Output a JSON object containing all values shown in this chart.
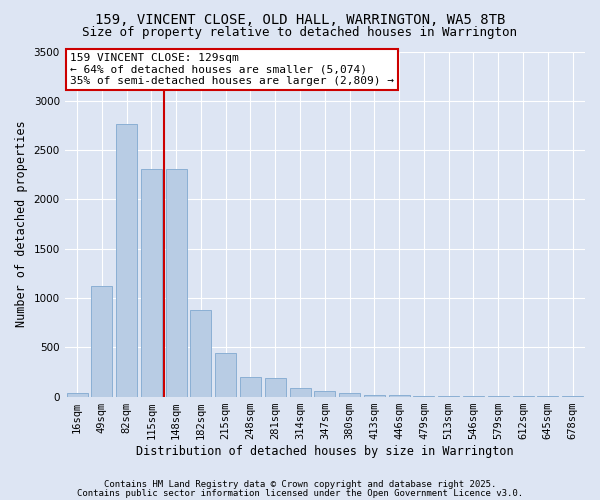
{
  "title": "159, VINCENT CLOSE, OLD HALL, WARRINGTON, WA5 8TB",
  "subtitle": "Size of property relative to detached houses in Warrington",
  "xlabel": "Distribution of detached houses by size in Warrington",
  "ylabel": "Number of detached properties",
  "categories": [
    "16sqm",
    "49sqm",
    "82sqm",
    "115sqm",
    "148sqm",
    "182sqm",
    "215sqm",
    "248sqm",
    "281sqm",
    "314sqm",
    "347sqm",
    "380sqm",
    "413sqm",
    "446sqm",
    "479sqm",
    "513sqm",
    "546sqm",
    "579sqm",
    "612sqm",
    "645sqm",
    "678sqm"
  ],
  "values": [
    40,
    1120,
    2760,
    2310,
    2310,
    880,
    440,
    195,
    185,
    85,
    55,
    40,
    20,
    15,
    10,
    8,
    5,
    4,
    3,
    2,
    2
  ],
  "bar_color": "#b8cce4",
  "bar_edgecolor": "#8bafd4",
  "bg_color": "#dde5f3",
  "grid_color": "#ffffff",
  "vline_x_index": 3.5,
  "vline_color": "#cc0000",
  "annotation_text": "159 VINCENT CLOSE: 129sqm\n← 64% of detached houses are smaller (5,074)\n35% of semi-detached houses are larger (2,809) →",
  "annotation_box_color": "#ffffff",
  "annotation_box_edgecolor": "#cc0000",
  "ylim": [
    0,
    3500
  ],
  "yticks": [
    0,
    500,
    1000,
    1500,
    2000,
    2500,
    3000,
    3500
  ],
  "footer_line1": "Contains HM Land Registry data © Crown copyright and database right 2025.",
  "footer_line2": "Contains public sector information licensed under the Open Government Licence v3.0.",
  "title_fontsize": 10,
  "subtitle_fontsize": 9,
  "xlabel_fontsize": 8.5,
  "ylabel_fontsize": 8.5,
  "tick_fontsize": 7.5,
  "annotation_fontsize": 8,
  "footer_fontsize": 6.5
}
